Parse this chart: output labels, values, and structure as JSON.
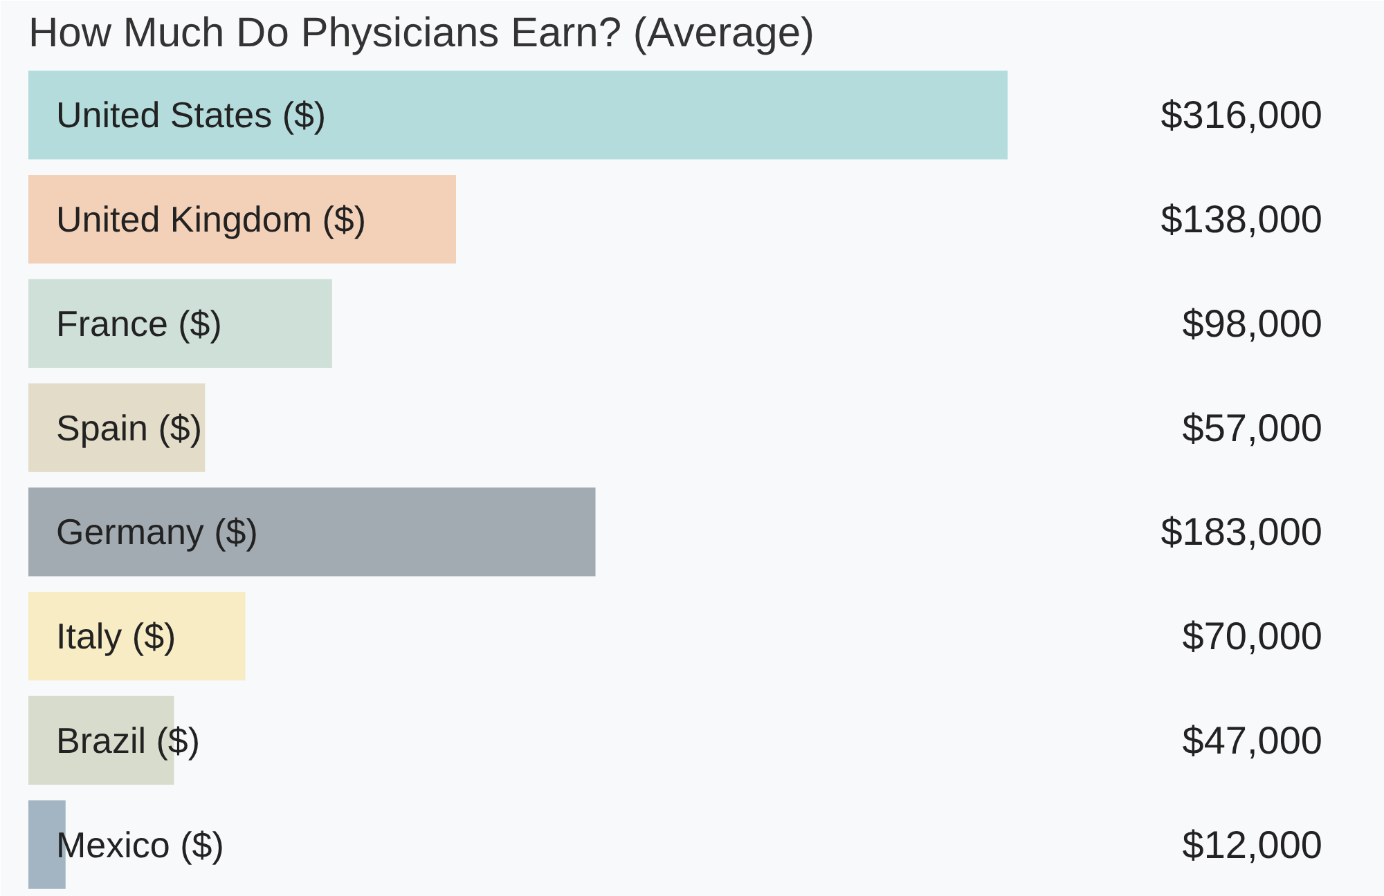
{
  "chart_data": {
    "type": "bar",
    "orientation": "horizontal",
    "title": "How Much Do Physicians Earn? (Average)",
    "categories": [
      "United States ($)",
      "United Kingdom ($)",
      "France ($)",
      "Spain ($)",
      "Germany ($)",
      "Italy ($)",
      "Brazil ($)",
      "Mexico ($)"
    ],
    "values": [
      316000,
      138000,
      98000,
      57000,
      183000,
      70000,
      47000,
      12000
    ],
    "colors": [
      "#b5dcdc",
      "#f3d0b8",
      "#cfe0d8",
      "#e3dcc8",
      "#a3abb2",
      "#f7ecc4",
      "#d8dccc",
      "#a3b5c3"
    ],
    "value_labels": [
      "$316,000",
      "$138,000",
      "$98,000",
      "$57,000",
      "$183,000",
      "$70,000",
      "$47,000",
      "$12,000"
    ]
  }
}
